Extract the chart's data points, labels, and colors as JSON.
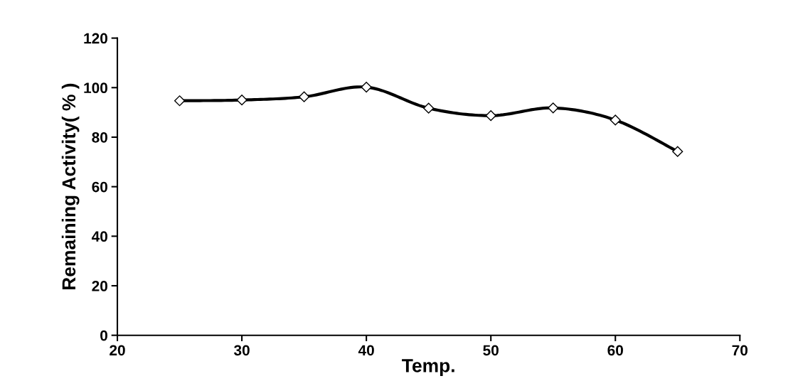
{
  "chart_data": {
    "type": "line",
    "xlabel": "Temp.",
    "ylabel": "Remaining Activity( % )",
    "x": [
      25,
      30,
      35,
      40,
      45,
      50,
      55,
      60,
      65
    ],
    "series": [
      {
        "color": "#000000",
        "values": [
          94.7,
          95,
          96.3,
          100.2,
          91.7,
          88.7,
          91.8,
          86.9,
          74.2
        ]
      }
    ],
    "xlim": [
      20,
      70
    ],
    "xticks": [
      20,
      30,
      40,
      50,
      60,
      70
    ],
    "ylim": [
      0,
      120
    ],
    "yticks": [
      0,
      20,
      40,
      60,
      80,
      100,
      120
    ],
    "marker": "diamond",
    "line_style": "solid",
    "grid": false,
    "legend": false
  }
}
